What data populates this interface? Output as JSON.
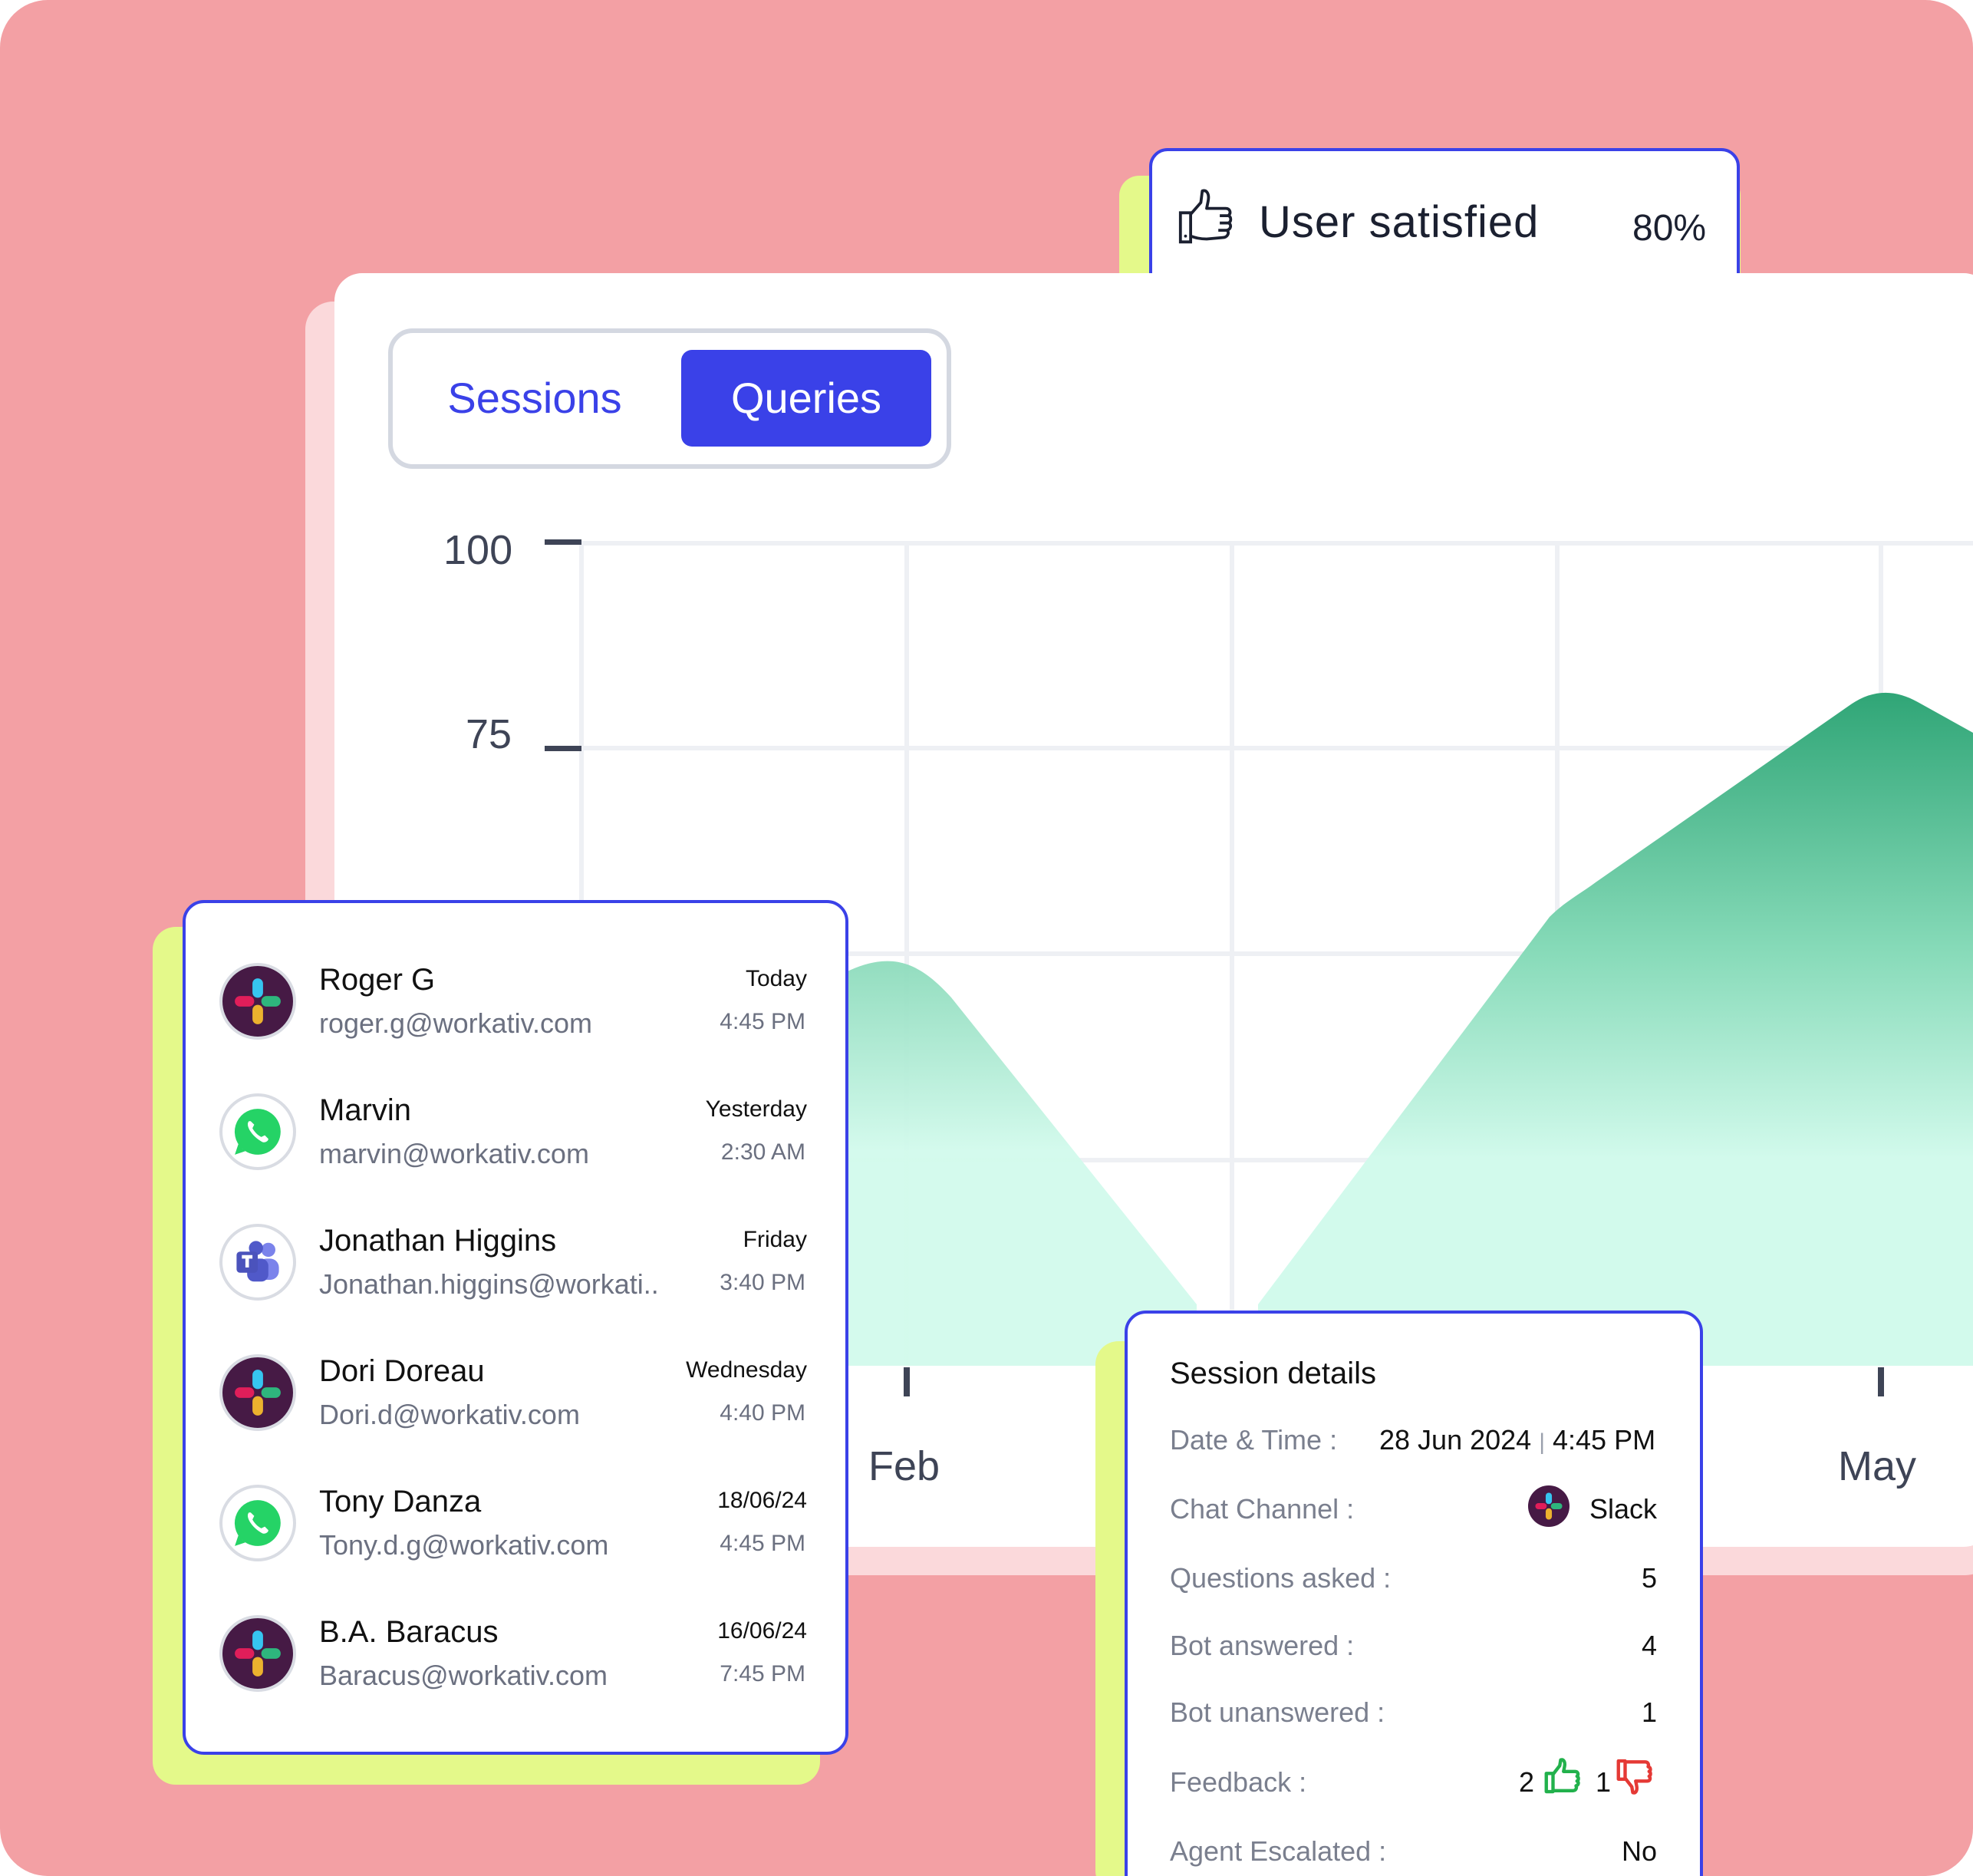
{
  "satisfaction": {
    "label": "User satisfied",
    "value": "80%"
  },
  "tabs": {
    "sessions": "Sessions",
    "queries": "Queries",
    "active": "Queries"
  },
  "chart_data": {
    "type": "area",
    "y_ticks": [
      "100",
      "75"
    ],
    "x_labels": [
      "Feb",
      "May"
    ],
    "series_color": "#2fa576",
    "fill_light": "#d2faec"
  },
  "conversations": [
    {
      "name": "Roger G",
      "email": "roger.g@workativ.com",
      "day": "Today",
      "time": "4:45 PM",
      "channel": "slack"
    },
    {
      "name": "Marvin",
      "email": "marvin@workativ.com",
      "day": "Yesterday",
      "time": "2:30 AM",
      "channel": "whatsapp"
    },
    {
      "name": "Jonathan Higgins",
      "email": "Jonathan.higgins@workati..",
      "day": "Friday",
      "time": "3:40 PM",
      "channel": "teams"
    },
    {
      "name": "Dori Doreau",
      "email": "Dori.d@workativ.com",
      "day": "Wednesday",
      "time": "4:40 PM",
      "channel": "slack"
    },
    {
      "name": "Tony Danza",
      "email": "Tony.d.g@workativ.com",
      "day": "18/06/24",
      "time": "4:45 PM",
      "channel": "whatsapp"
    },
    {
      "name": "B.A. Baracus",
      "email": "Baracus@workativ.com",
      "day": "16/06/24",
      "time": "7:45 PM",
      "channel": "slack"
    }
  ],
  "session_details": {
    "title": "Session details",
    "date_label": "Date & Time :",
    "date_value": "28 Jun 2024",
    "date_sep": "|",
    "time_value": "4:45 PM",
    "channel_label": "Chat Channel :",
    "channel_value": "Slack",
    "questions_label": "Questions asked :",
    "questions_value": "5",
    "answered_label": "Bot answered :",
    "answered_value": "4",
    "unanswered_label": "Bot unanswered :",
    "unanswered_value": "1",
    "feedback_label": "Feedback :",
    "feedback_up": "2",
    "feedback_down": "1",
    "escalated_label": "Agent Escalated :",
    "escalated_value": "No"
  },
  "colors": {
    "accent": "#3a41e8",
    "background": "#f3a0a4",
    "highlight": "#e4f98a"
  }
}
